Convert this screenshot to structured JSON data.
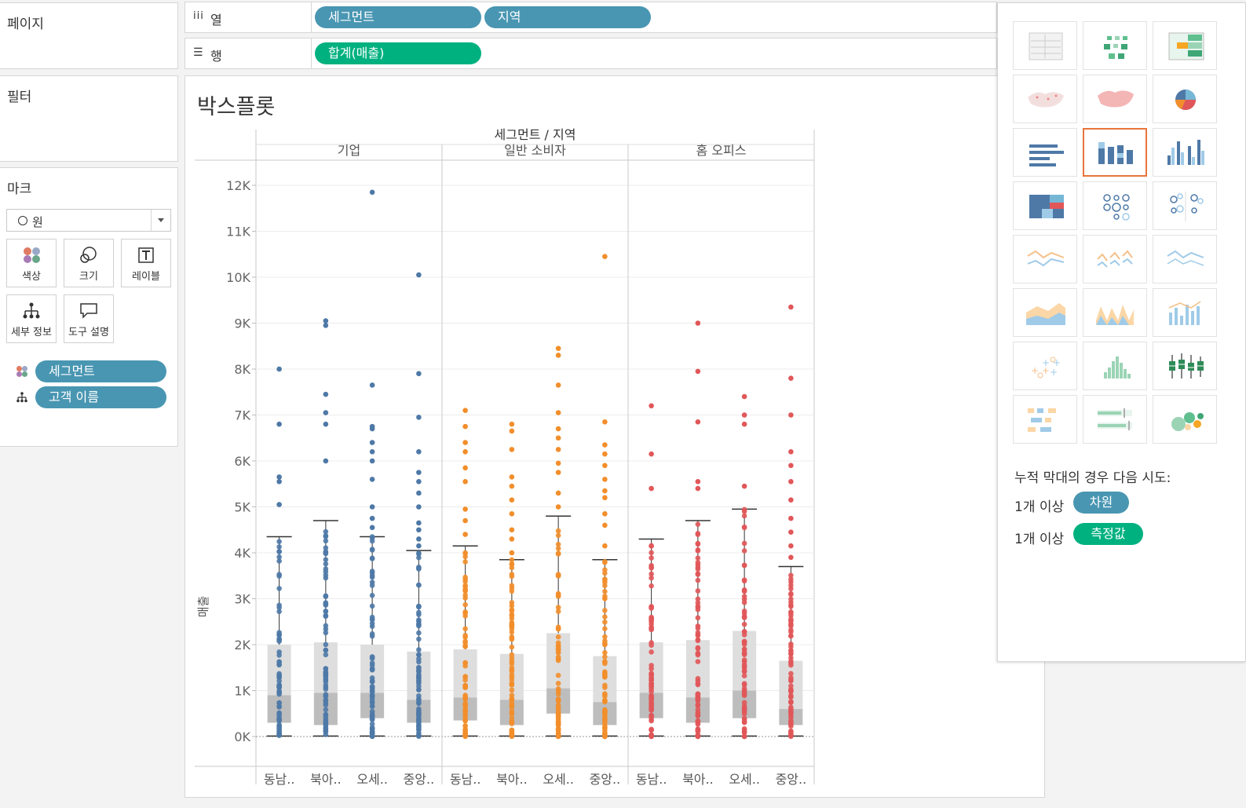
{
  "pages_card": {
    "title": "페이지"
  },
  "filters_card": {
    "title": "필터"
  },
  "marks_card": {
    "title": "마크",
    "mark_type": "원",
    "buttons": {
      "color": "색상",
      "size": "크기",
      "label": "레이블",
      "detail": "세부 정보",
      "tooltip": "도구 설명"
    },
    "fields": [
      {
        "name": "세그먼트",
        "encoding": "color"
      },
      {
        "name": "고객 이름",
        "encoding": "detail"
      }
    ]
  },
  "shelves": {
    "columns": {
      "label": "열",
      "pills": [
        "세그먼트",
        "지역"
      ]
    },
    "rows": {
      "label": "행",
      "pills": [
        "합계(매출)"
      ]
    }
  },
  "view": {
    "title": "박스플롯"
  },
  "show_me": {
    "hint": "누적 막대의 경우 다음 시도:",
    "req1_prefix": "1개 이상",
    "req1_pill": "차원",
    "req2_prefix": "1개 이상",
    "req2_pill": "측정값"
  },
  "chart_data": {
    "type": "scatter",
    "subtype": "box-plot with jittered points",
    "header_title": "세그먼트 / 지역",
    "ylabel": "매출",
    "ylim": [
      0,
      12500
    ],
    "yticks": [
      "0K",
      "1K",
      "2K",
      "3K",
      "4K",
      "5K",
      "6K",
      "7K",
      "8K",
      "9K",
      "10K",
      "11K",
      "12K"
    ],
    "grid": true,
    "panels": [
      {
        "segment": "기업",
        "color": "#4e79a7",
        "regions": [
          {
            "label": "동남..",
            "box": {
              "lower_whisker": 10,
              "q1": 300,
              "median": 900,
              "q3": 2000,
              "upper_whisker": 4350
            },
            "outliers": [
              5050,
              5550,
              5650,
              6800,
              8000
            ]
          },
          {
            "label": "북아..",
            "box": {
              "lower_whisker": 10,
              "q1": 250,
              "median": 950,
              "q3": 2050,
              "upper_whisker": 4700
            },
            "outliers": [
              6000,
              6800,
              7050,
              7450,
              8950,
              9050
            ]
          },
          {
            "label": "오세..",
            "box": {
              "lower_whisker": 10,
              "q1": 400,
              "median": 950,
              "q3": 2000,
              "upper_whisker": 4350
            },
            "outliers": [
              4550,
              4750,
              5000,
              5600,
              6000,
              6200,
              6400,
              6700,
              6750,
              7650,
              11850
            ]
          },
          {
            "label": "중앙..",
            "box": {
              "lower_whisker": 10,
              "q1": 300,
              "median": 800,
              "q3": 1850,
              "upper_whisker": 4050
            },
            "outliers": [
              4150,
              4300,
              4500,
              4650,
              5000,
              5300,
              5550,
              5750,
              6200,
              6950,
              7900,
              10050
            ]
          }
        ]
      },
      {
        "segment": "일반 소비자",
        "color": "#f28e2b",
        "regions": [
          {
            "label": "동남..",
            "box": {
              "lower_whisker": 10,
              "q1": 350,
              "median": 850,
              "q3": 1900,
              "upper_whisker": 4150
            },
            "outliers": [
              4400,
              4700,
              4950,
              5550,
              5850,
              6200,
              6400,
              6750,
              7100
            ]
          },
          {
            "label": "북아..",
            "box": {
              "lower_whisker": 10,
              "q1": 250,
              "median": 800,
              "q3": 1800,
              "upper_whisker": 3850
            },
            "outliers": [
              4000,
              4300,
              4500,
              4850,
              5150,
              5450,
              5650,
              6250,
              6650,
              6800
            ]
          },
          {
            "label": "오세..",
            "box": {
              "lower_whisker": 10,
              "q1": 500,
              "median": 1050,
              "q3": 2250,
              "upper_whisker": 4800
            },
            "outliers": [
              5000,
              5300,
              5750,
              5950,
              6250,
              6500,
              6700,
              7050,
              7650,
              8300,
              8450
            ]
          },
          {
            "label": "중앙..",
            "box": {
              "lower_whisker": 10,
              "q1": 250,
              "median": 750,
              "q3": 1750,
              "upper_whisker": 3850
            },
            "outliers": [
              4150,
              4600,
              4850,
              5200,
              5350,
              5600,
              5900,
              6150,
              6350,
              6850,
              10450
            ]
          }
        ]
      },
      {
        "segment": "홈 오피스",
        "color": "#e15759",
        "regions": [
          {
            "label": "동남..",
            "box": {
              "lower_whisker": 10,
              "q1": 400,
              "median": 950,
              "q3": 2050,
              "upper_whisker": 4300
            },
            "outliers": [
              5400,
              6150,
              7200
            ]
          },
          {
            "label": "북아..",
            "box": {
              "lower_whisker": 10,
              "q1": 300,
              "median": 850,
              "q3": 2100,
              "upper_whisker": 4700
            },
            "outliers": [
              5400,
              5550,
              6850,
              7950,
              9000
            ]
          },
          {
            "label": "오세..",
            "box": {
              "lower_whisker": 10,
              "q1": 400,
              "median": 1000,
              "q3": 2300,
              "upper_whisker": 4950
            },
            "outliers": [
              5450,
              6800,
              7000,
              7400
            ]
          },
          {
            "label": "중앙..",
            "box": {
              "lower_whisker": 10,
              "q1": 250,
              "median": 600,
              "q3": 1650,
              "upper_whisker": 3700
            },
            "outliers": [
              3900,
              4150,
              4450,
              4750,
              5150,
              5550,
              5900,
              6200,
              7000,
              7800,
              9350
            ]
          }
        ]
      }
    ]
  }
}
